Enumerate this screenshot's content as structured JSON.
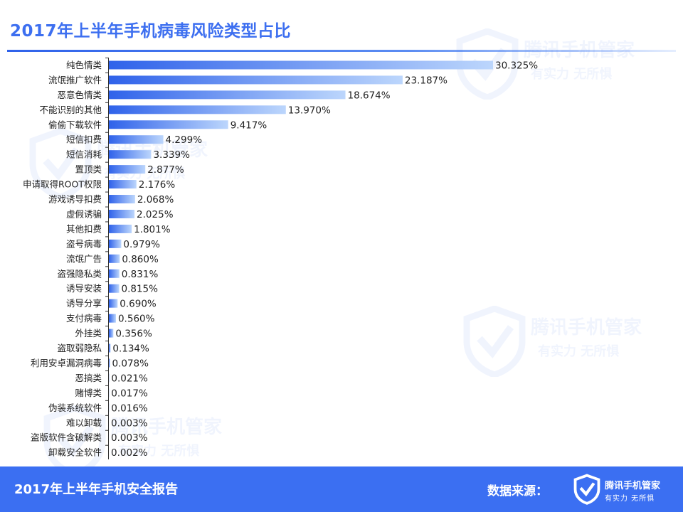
{
  "header": {
    "title": "2017年上半年手机病毒风险类型占比"
  },
  "footer": {
    "report": "2017年上半年手机安全报告",
    "source_label": "数据来源：",
    "logo_name": "腾讯手机管家",
    "logo_slogan": "有实力 无所惧"
  },
  "watermark": {
    "name": "腾讯手机管家",
    "slogan": "有实力  无所惧"
  },
  "colors": {
    "accent": "#3b6ff2",
    "bar_start": "#2f62ea",
    "bar_end": "#bcd6fc",
    "label": "#222222"
  },
  "chart_data": {
    "type": "bar",
    "orientation": "horizontal",
    "title": "2017年上半年手机病毒风险类型占比",
    "unit": "%",
    "categories": [
      "纯色情类",
      "流氓推广软件",
      "恶意色情类",
      "不能识别的其他",
      "偷偷下载软件",
      "短信扣费",
      "短信消耗",
      "置顶类",
      "申请取得ROOT权限",
      "游戏诱导扣费",
      "虚假诱骗",
      "其他扣费",
      "盗号病毒",
      "流氓广告",
      "盗强隐私类",
      "诱导安装",
      "诱导分享",
      "支付病毒",
      "外挂类",
      "盗取弱隐私",
      "利用安卓漏洞病毒",
      "恶搞类",
      "赌博类",
      "伪装系统软件",
      "难以卸载",
      "盗版软件含破解类",
      "卸载安全软件"
    ],
    "values": [
      30.325,
      23.187,
      18.674,
      13.97,
      9.417,
      4.299,
      3.339,
      2.877,
      2.176,
      2.068,
      2.025,
      1.801,
      0.979,
      0.86,
      0.831,
      0.815,
      0.69,
      0.56,
      0.356,
      0.134,
      0.078,
      0.021,
      0.017,
      0.016,
      0.003,
      0.003,
      0.002
    ],
    "value_labels": [
      "30.325%",
      "23.187%",
      "18.674%",
      "13.970%",
      "9.417%",
      "4.299%",
      "3.339%",
      "2.877%",
      "2.176%",
      "2.068%",
      "2.025%",
      "1.801%",
      "0.979%",
      "0.860%",
      "0.831%",
      "0.815%",
      "0.690%",
      "0.560%",
      "0.356%",
      "0.134%",
      "0.078%",
      "0.021%",
      "0.017%",
      "0.016%",
      "0.003%",
      "0.003%",
      "0.002%"
    ],
    "xlim": [
      0,
      30.325
    ],
    "grid": false,
    "legend": "none"
  }
}
